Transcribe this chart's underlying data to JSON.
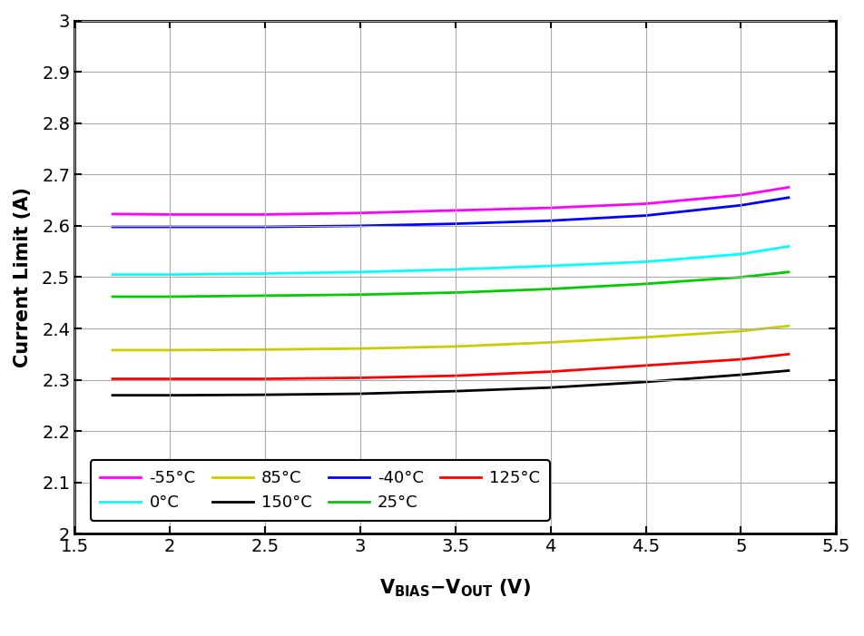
{
  "ylabel": "Current Limit (A)",
  "xlim": [
    1.5,
    5.5
  ],
  "ylim": [
    2.0,
    3.0
  ],
  "xticks": [
    1.5,
    2.0,
    2.5,
    3.0,
    3.5,
    4.0,
    4.5,
    5.0,
    5.5
  ],
  "yticks": [
    2.0,
    2.1,
    2.2,
    2.3,
    2.4,
    2.5,
    2.6,
    2.7,
    2.8,
    2.9,
    3.0
  ],
  "series": [
    {
      "label": "-55°C",
      "color": "#ff00ff",
      "x": [
        1.7,
        2.0,
        2.5,
        3.0,
        3.5,
        4.0,
        4.5,
        5.0,
        5.25
      ],
      "y": [
        2.623,
        2.622,
        2.622,
        2.625,
        2.63,
        2.635,
        2.643,
        2.66,
        2.675
      ]
    },
    {
      "label": "-40°C",
      "color": "#0000ff",
      "x": [
        1.7,
        2.0,
        2.5,
        3.0,
        3.5,
        4.0,
        4.5,
        5.0,
        5.25
      ],
      "y": [
        2.598,
        2.598,
        2.598,
        2.6,
        2.604,
        2.61,
        2.62,
        2.64,
        2.655
      ]
    },
    {
      "label": "0°C",
      "color": "#00ffff",
      "x": [
        1.7,
        2.0,
        2.5,
        3.0,
        3.5,
        4.0,
        4.5,
        5.0,
        5.25
      ],
      "y": [
        2.505,
        2.505,
        2.507,
        2.51,
        2.515,
        2.522,
        2.53,
        2.545,
        2.56
      ]
    },
    {
      "label": "25°C",
      "color": "#00cc00",
      "x": [
        1.7,
        2.0,
        2.5,
        3.0,
        3.5,
        4.0,
        4.5,
        5.0,
        5.25
      ],
      "y": [
        2.462,
        2.462,
        2.464,
        2.466,
        2.47,
        2.477,
        2.487,
        2.5,
        2.51
      ]
    },
    {
      "label": "85°C",
      "color": "#cccc00",
      "x": [
        1.7,
        2.0,
        2.5,
        3.0,
        3.5,
        4.0,
        4.5,
        5.0,
        5.25
      ],
      "y": [
        2.358,
        2.358,
        2.359,
        2.361,
        2.365,
        2.373,
        2.383,
        2.395,
        2.405
      ]
    },
    {
      "label": "125°C",
      "color": "#ff0000",
      "x": [
        1.7,
        2.0,
        2.5,
        3.0,
        3.5,
        4.0,
        4.5,
        5.0,
        5.25
      ],
      "y": [
        2.302,
        2.302,
        2.302,
        2.304,
        2.308,
        2.316,
        2.328,
        2.34,
        2.35
      ]
    },
    {
      "label": "150°C",
      "color": "#000000",
      "x": [
        1.7,
        2.0,
        2.5,
        3.0,
        3.5,
        4.0,
        4.5,
        5.0,
        5.25
      ],
      "y": [
        2.27,
        2.27,
        2.271,
        2.273,
        2.278,
        2.285,
        2.296,
        2.31,
        2.318
      ]
    }
  ],
  "legend_order": [
    0,
    2,
    4,
    6,
    1,
    3,
    5
  ],
  "background_color": "#ffffff",
  "grid_color": "#aaaaaa"
}
